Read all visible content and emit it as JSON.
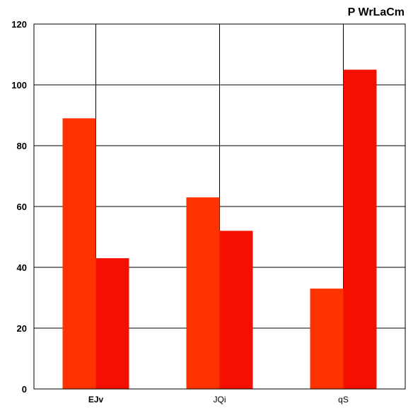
{
  "chart_data": {
    "type": "bar",
    "title": "P  WrLaCm",
    "categories": [
      "EJv",
      "JQi",
      "qS"
    ],
    "series": [
      {
        "values": [
          89,
          63,
          33
        ],
        "color": "#ff3300"
      },
      {
        "values": [
          43,
          52,
          105
        ],
        "color": "#f50f00"
      }
    ],
    "ylim": [
      0,
      120
    ],
    "yticks": [
      "0",
      "20",
      "40",
      "60",
      "80",
      "100",
      "120"
    ],
    "grid": true,
    "bold_categories": [
      "EJv"
    ]
  }
}
